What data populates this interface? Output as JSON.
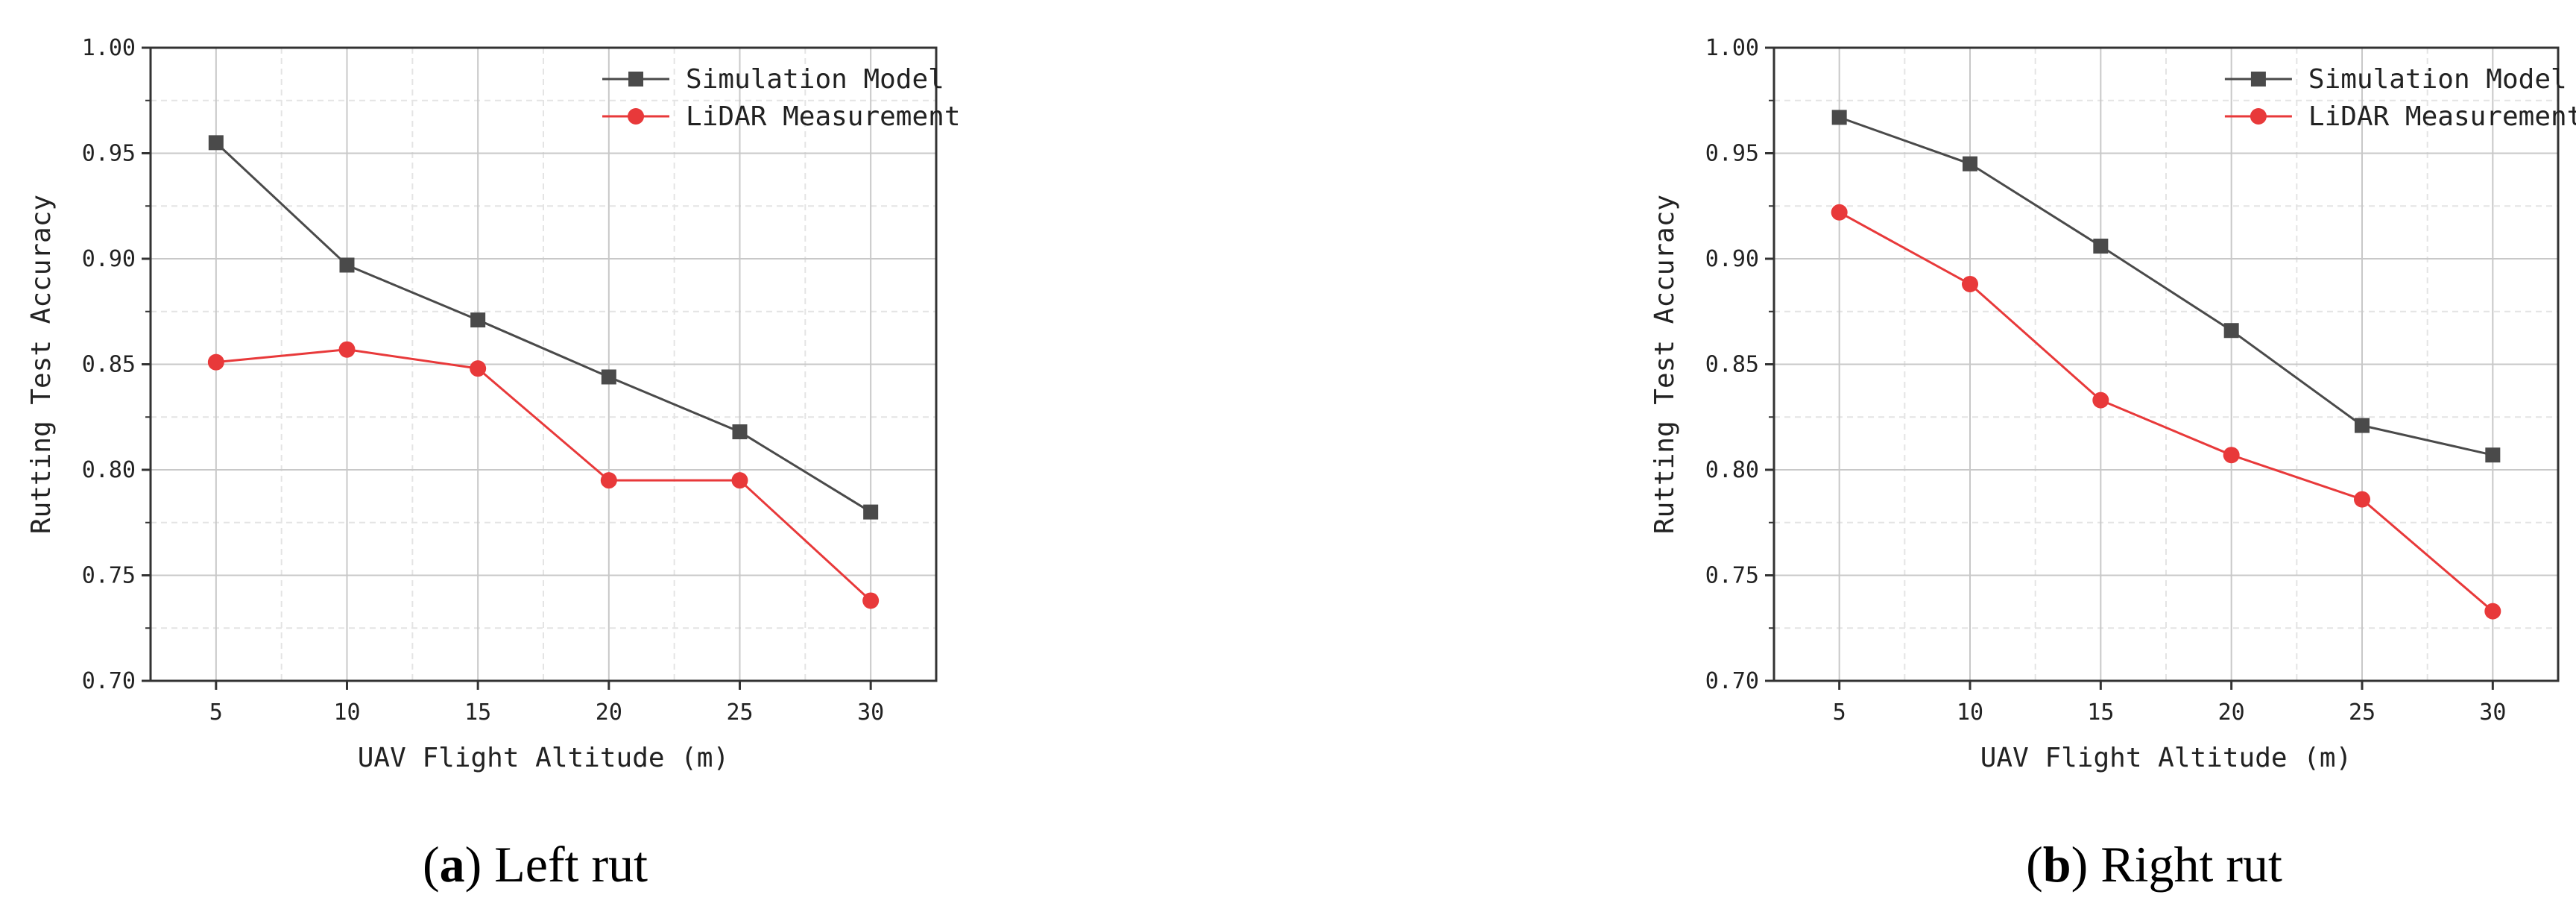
{
  "chart_data": [
    {
      "type": "line",
      "caption_letter": "a",
      "caption_text": "Left rut",
      "x": [
        5,
        10,
        15,
        20,
        25,
        30
      ],
      "series": [
        {
          "name": "Simulation Model",
          "values": [
            0.955,
            0.897,
            0.871,
            0.844,
            0.818,
            0.78
          ],
          "color": "#4a4a4a",
          "marker": "square"
        },
        {
          "name": "LiDAR Measurement",
          "values": [
            0.851,
            0.857,
            0.848,
            0.795,
            0.795,
            0.738
          ],
          "color": "#e8393a",
          "marker": "circle"
        }
      ],
      "xlabel": "UAV Flight Altitude (m)",
      "ylabel": "Rutting Test Accuracy",
      "xlim": [
        2.5,
        32.5
      ],
      "ylim": [
        0.7,
        1.0
      ],
      "xticks": [
        "5",
        "10",
        "15",
        "20",
        "25",
        "30"
      ],
      "yticks": [
        "0.70",
        "0.75",
        "0.80",
        "0.85",
        "0.90",
        "0.95",
        "1.00"
      ],
      "grid": true,
      "legend_position": "top-right"
    },
    {
      "type": "line",
      "caption_letter": "b",
      "caption_text": "Right rut",
      "x": [
        5,
        10,
        15,
        20,
        25,
        30
      ],
      "series": [
        {
          "name": "Simulation Model",
          "values": [
            0.967,
            0.945,
            0.906,
            0.866,
            0.821,
            0.807
          ],
          "color": "#4a4a4a",
          "marker": "square"
        },
        {
          "name": "LiDAR Measurement",
          "values": [
            0.922,
            0.888,
            0.833,
            0.807,
            0.786,
            0.733
          ],
          "color": "#e8393a",
          "marker": "circle"
        }
      ],
      "xlabel": "UAV Flight Altitude (m)",
      "ylabel": "Rutting Test Accuracy",
      "xlim": [
        2.5,
        32.5
      ],
      "ylim": [
        0.7,
        1.0
      ],
      "xticks": [
        "5",
        "10",
        "15",
        "20",
        "25",
        "30"
      ],
      "yticks": [
        "0.70",
        "0.75",
        "0.80",
        "0.85",
        "0.90",
        "0.95",
        "1.00"
      ],
      "grid": true,
      "legend_position": "top-right"
    }
  ]
}
